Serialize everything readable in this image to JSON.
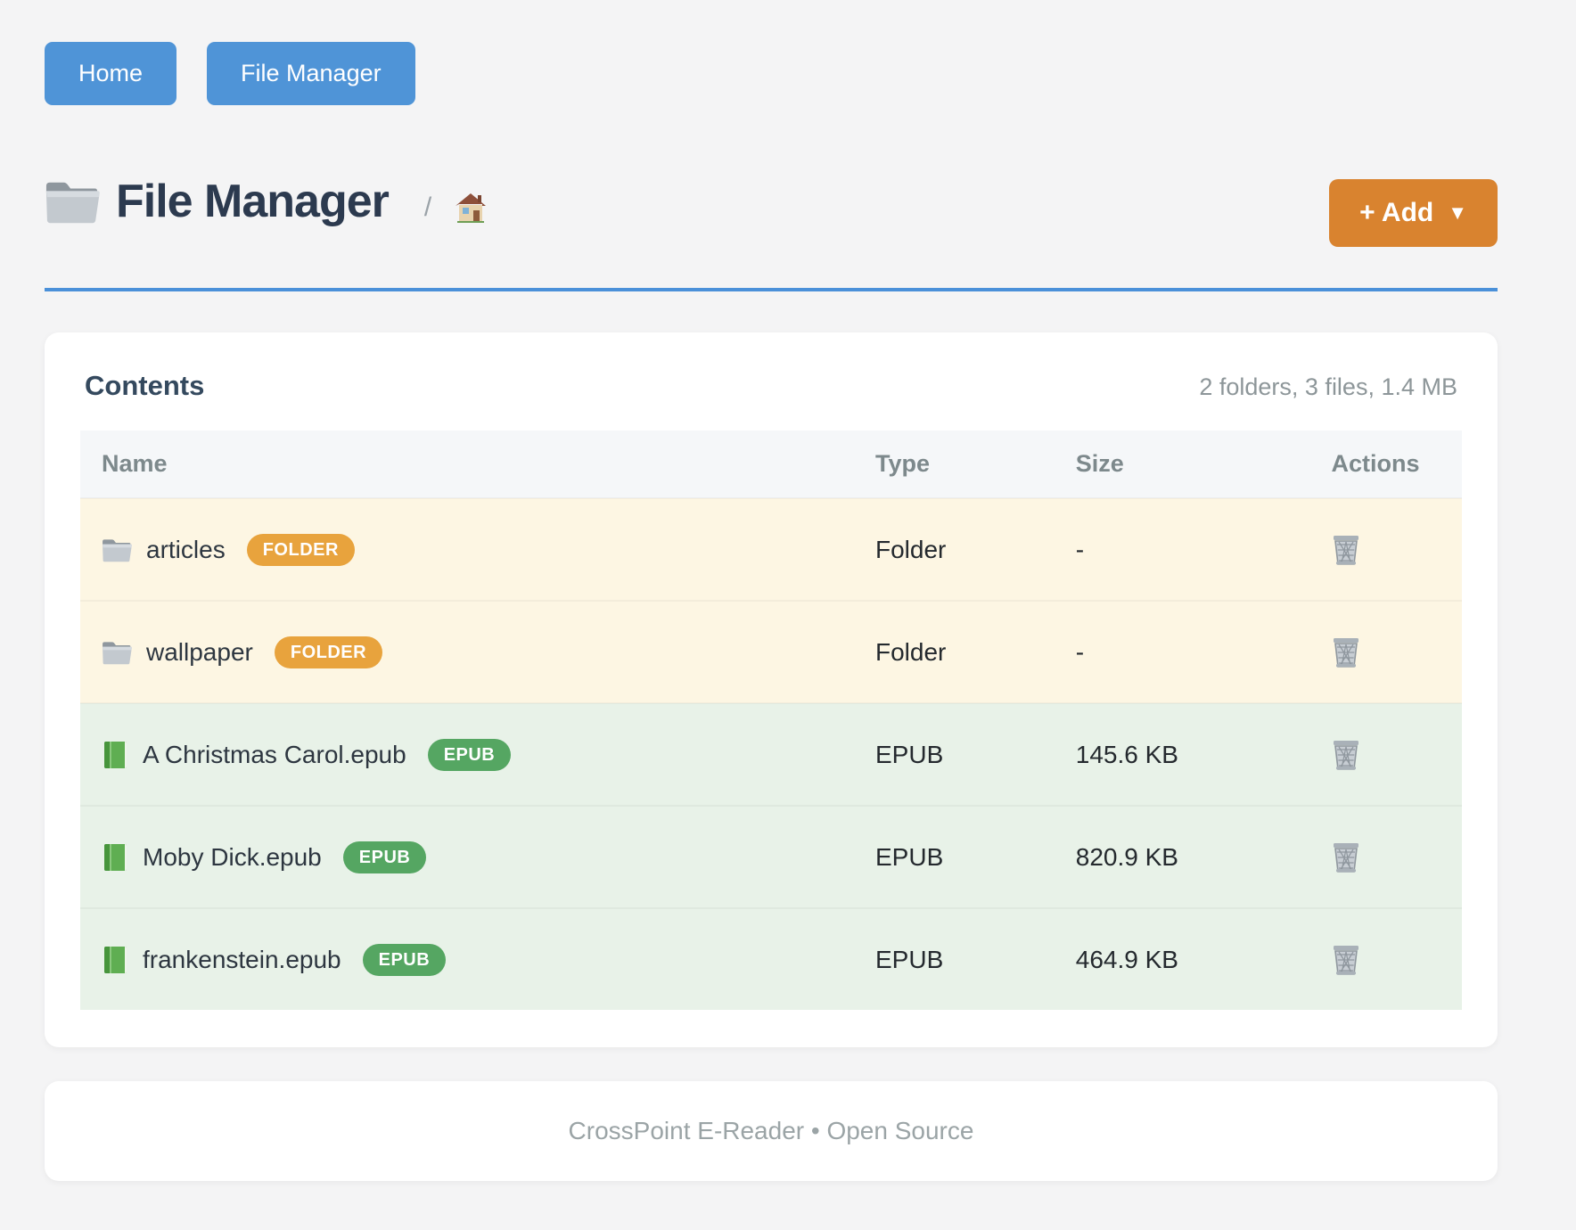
{
  "nav": {
    "buttons": [
      {
        "label": "Home"
      },
      {
        "label": "File Manager"
      }
    ]
  },
  "header": {
    "title_icon": "folder-icon",
    "title": "File Manager",
    "breadcrumb_separator": "/",
    "breadcrumb_home_icon": "house-icon",
    "add_button": {
      "label": "+ Add",
      "caret": "▼"
    }
  },
  "contents": {
    "title": "Contents",
    "summary": "2 folders, 3 files, 1.4 MB",
    "columns": [
      "Name",
      "Type",
      "Size",
      "Actions"
    ],
    "rows": [
      {
        "icon": "folder-icon",
        "kind": "folder",
        "name": "articles",
        "badge": "FOLDER",
        "type": "Folder",
        "size": "-",
        "action_icon": "trash-icon"
      },
      {
        "icon": "folder-icon",
        "kind": "folder",
        "name": "wallpaper",
        "badge": "FOLDER",
        "type": "Folder",
        "size": "-",
        "action_icon": "trash-icon"
      },
      {
        "icon": "book-icon",
        "kind": "epub",
        "name": "A Christmas Carol.epub",
        "badge": "EPUB",
        "type": "EPUB",
        "size": "145.6 KB",
        "action_icon": "trash-icon"
      },
      {
        "icon": "book-icon",
        "kind": "epub",
        "name": "Moby Dick.epub",
        "badge": "EPUB",
        "type": "EPUB",
        "size": "820.9 KB",
        "action_icon": "trash-icon"
      },
      {
        "icon": "book-icon",
        "kind": "epub",
        "name": "frankenstein.epub",
        "badge": "EPUB",
        "type": "EPUB",
        "size": "464.9 KB",
        "action_icon": "trash-icon"
      }
    ]
  },
  "footer": {
    "text": "CrossPoint E-Reader • Open Source"
  },
  "colors": {
    "nav_button": "#4f94d7",
    "add_button": "#d9832f",
    "rule": "#4a90d9",
    "folder_row_bg": "#fdf6e3",
    "epub_row_bg": "#e8f2e8",
    "folder_badge": "#e8a33d",
    "epub_badge": "#55a662",
    "title_text": "#2c3a4f"
  }
}
